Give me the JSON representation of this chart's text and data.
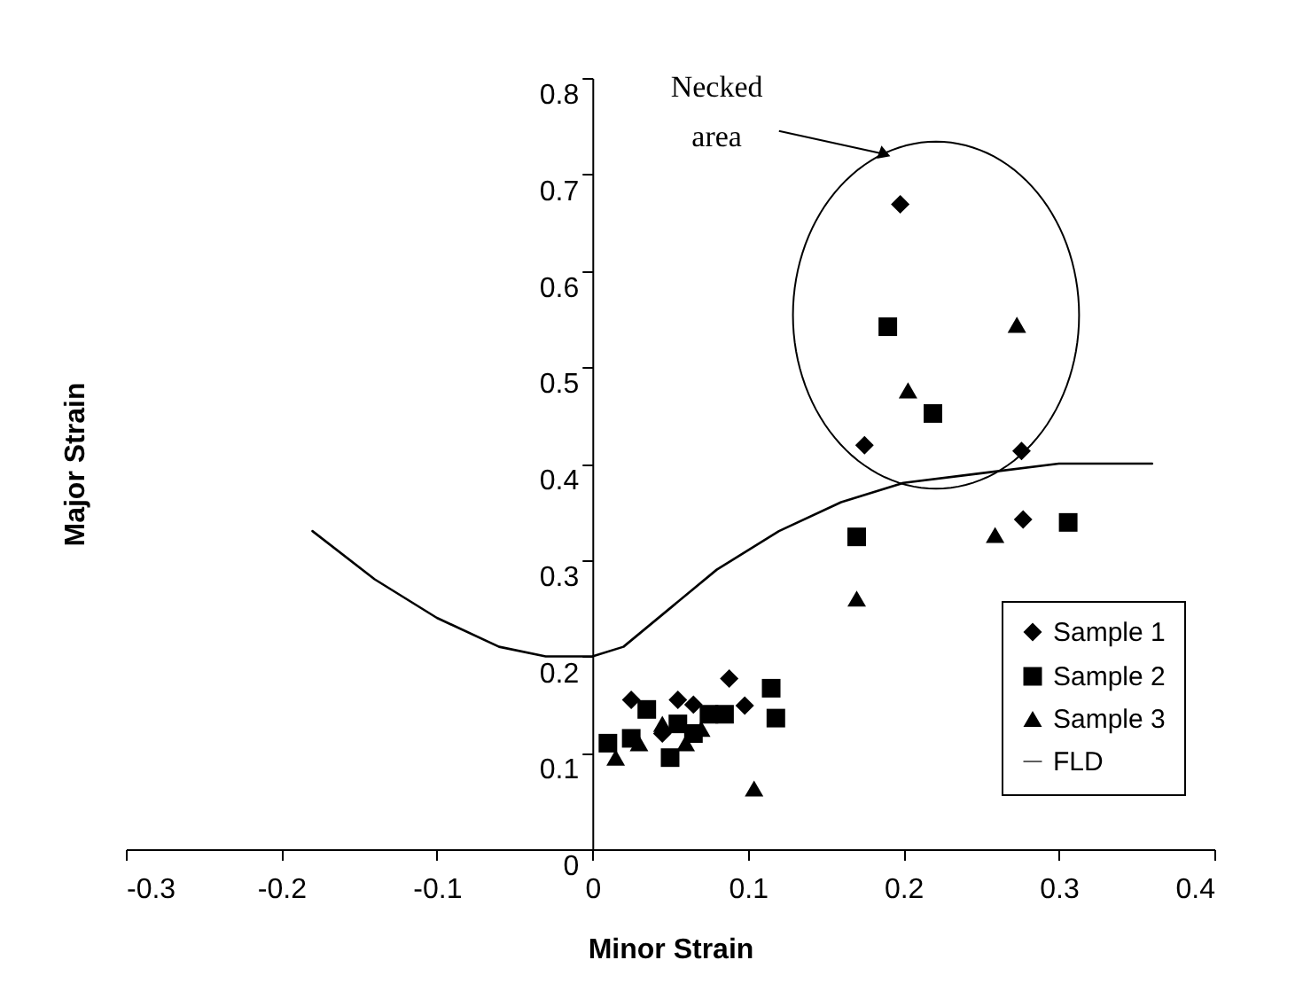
{
  "chart_data": {
    "type": "scatter",
    "xlabel": "Minor Strain",
    "ylabel": "Major Strain",
    "xlim": [
      -0.3,
      0.4
    ],
    "xticks": [
      -0.3,
      -0.2,
      -0.1,
      0,
      0.1,
      0.2,
      0.3,
      0.4
    ],
    "ylim": [
      0,
      0.8
    ],
    "yticks": [
      0,
      0.1,
      0.2,
      0.3,
      0.4,
      0.5,
      0.6,
      0.7,
      0.8
    ],
    "grid": false,
    "legend": "bottom right",
    "annotations": [
      "Necked area"
    ],
    "series": [
      {
        "name": "Sample 1",
        "color": "#000000",
        "marker": "diamond",
        "x": [
          0.198,
          0.175,
          0.276,
          0.277,
          0.088,
          0.098,
          0.025,
          0.04,
          0.055,
          0.065,
          0.045
        ],
        "values": [
          0.669,
          0.419,
          0.413,
          0.342,
          0.177,
          0.149,
          0.155,
          null,
          0.155,
          0.15,
          0.12
        ]
      },
      {
        "name": "Sample 2",
        "color": "#000000",
        "marker": "square",
        "x": [
          0.19,
          0.219,
          0.17,
          0.306,
          0.115,
          0.118,
          0.01,
          0.025,
          0.035,
          0.05,
          0.055,
          0.065,
          0.075,
          0.085
        ],
        "values": [
          0.542,
          0.452,
          0.324,
          0.339,
          0.167,
          0.136,
          0.11,
          0.115,
          0.145,
          0.095,
          0.13,
          0.12,
          0.14,
          0.14
        ]
      },
      {
        "name": "Sample 3",
        "color": "#000000",
        "marker": "triangle",
        "x": [
          0.273,
          0.203,
          0.259,
          0.17,
          0.104,
          0.015,
          0.03,
          0.045,
          0.06,
          0.07
        ],
        "values": [
          0.544,
          0.476,
          0.326,
          0.26,
          0.063,
          0.095,
          0.11,
          0.13,
          0.11,
          0.125
        ]
      },
      {
        "name": "FLD",
        "type": "line",
        "color": "#000000",
        "marker": "none",
        "line_style": "solid",
        "x": [
          -0.18,
          -0.14,
          -0.1,
          -0.06,
          -0.03,
          0,
          0.02,
          0.05,
          0.08,
          0.12,
          0.16,
          0.2,
          0.25,
          0.3,
          0.36
        ],
        "values": [
          0.33,
          0.28,
          0.24,
          0.21,
          0.2,
          0.2,
          0.21,
          0.25,
          0.29,
          0.33,
          0.36,
          0.38,
          0.39,
          0.4,
          0.4
        ]
      }
    ]
  }
}
